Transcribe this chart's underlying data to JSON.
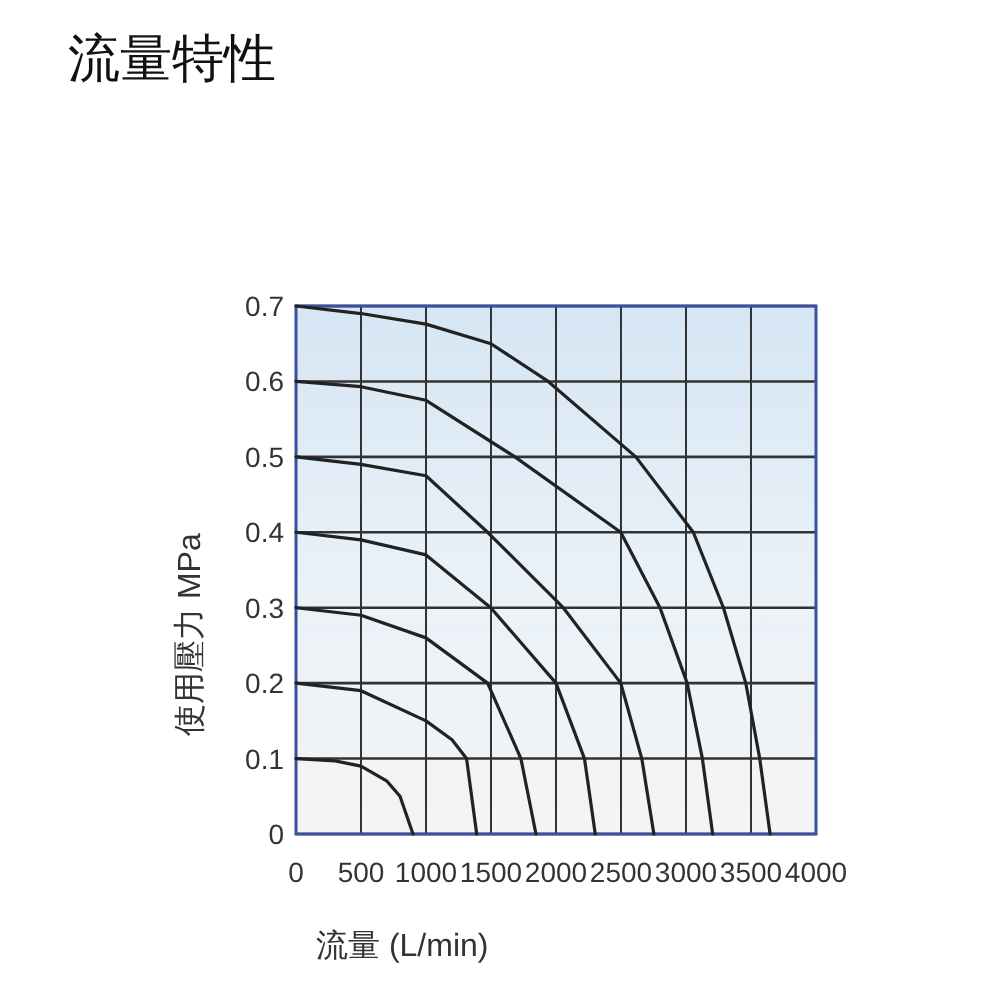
{
  "chart_data": {
    "type": "line",
    "title": "流量特性",
    "xlabel": "流量    (L/min)",
    "ylabel": "使用壓力    MPa",
    "xlim": [
      0,
      4000
    ],
    "ylim": [
      0,
      0.7
    ],
    "xticks": [
      0,
      500,
      1000,
      1500,
      2000,
      2500,
      3000,
      3500,
      4000
    ],
    "yticks": [
      0,
      0.1,
      0.2,
      0.3,
      0.4,
      0.5,
      0.6,
      0.7
    ],
    "grid": true,
    "marker": "none",
    "line_style": "solid",
    "series": [
      {
        "color": "#222222",
        "x": [
          0,
          300,
          500,
          700,
          800,
          900
        ],
        "values": [
          0.1,
          0.097,
          0.09,
          0.07,
          0.05,
          0
        ]
      },
      {
        "color": "#222222",
        "x": [
          0,
          500,
          1000,
          1200,
          1312,
          1390
        ],
        "values": [
          0.2,
          0.19,
          0.15,
          0.125,
          0.1,
          0
        ]
      },
      {
        "color": "#222222",
        "x": [
          0,
          500,
          1000,
          1474,
          1730,
          1846
        ],
        "values": [
          0.3,
          0.29,
          0.26,
          0.2,
          0.1,
          0
        ]
      },
      {
        "color": "#222222",
        "x": [
          0,
          500,
          1000,
          1498,
          2000,
          2219,
          2302
        ],
        "values": [
          0.4,
          0.39,
          0.37,
          0.3,
          0.2,
          0.1,
          0
        ]
      },
      {
        "color": "#222222",
        "x": [
          0,
          500,
          1000,
          1474,
          2056,
          2498,
          2660,
          2753
        ],
        "values": [
          0.5,
          0.49,
          0.475,
          0.4,
          0.3,
          0.2,
          0.1,
          0
        ]
      },
      {
        "color": "#222222",
        "x": [
          0,
          500,
          1000,
          1684,
          2498,
          2800,
          3009,
          3126,
          3205
        ],
        "values": [
          0.6,
          0.593,
          0.575,
          0.5,
          0.4,
          0.3,
          0.2,
          0.1,
          0
        ]
      },
      {
        "color": "#222222",
        "x": [
          0,
          500,
          1000,
          1500,
          1940,
          2614,
          3056,
          3288,
          3460,
          3567,
          3647
        ],
        "values": [
          0.7,
          0.69,
          0.676,
          0.65,
          0.6,
          0.5,
          0.4,
          0.3,
          0.2,
          0.1,
          0
        ]
      }
    ]
  }
}
